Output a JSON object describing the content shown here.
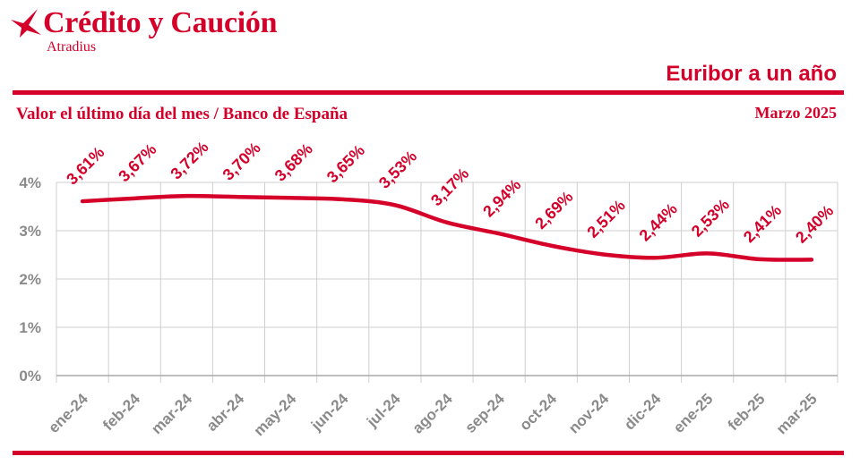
{
  "brand": {
    "logo_icon": "bird-logo-icon",
    "name": "Crédito y Caución",
    "sub": "Atradius"
  },
  "header": {
    "date": "Marzo 2025"
  },
  "colors": {
    "accent": "#d4002a",
    "grid": "#cfcfcf",
    "axis": "#a8a8a8",
    "axis_text": "#8a8a8a"
  },
  "chart_data": {
    "type": "line",
    "title": "Euribor a un año",
    "subtitle": "Valor el último día del mes / Banco de España",
    "categories": [
      "ene-24",
      "feb-24",
      "mar-24",
      "abr-24",
      "may-24",
      "jun-24",
      "jul-24",
      "ago-24",
      "sep-24",
      "oct-24",
      "nov-24",
      "dic-24",
      "ene-25",
      "feb-25",
      "mar-25"
    ],
    "series": [
      {
        "values": [
          3.61,
          3.67,
          3.72,
          3.7,
          3.68,
          3.65,
          3.53,
          3.17,
          2.94,
          2.69,
          2.51,
          2.44,
          2.53,
          2.41,
          2.4
        ],
        "data_labels": [
          "3,61%",
          "3,67%",
          "3,72%",
          "3,70%",
          "3,68%",
          "3,65%",
          "3,53%",
          "3,17%",
          "2,94%",
          "2,69%",
          "2,51%",
          "2,44%",
          "2,53%",
          "2,41%",
          "2,40%"
        ],
        "smooth": true
      }
    ],
    "ylim": [
      0,
      4
    ],
    "yticks": [
      0,
      1,
      2,
      3,
      4
    ],
    "ytick_labels": [
      "0%",
      "1%",
      "2%",
      "3%",
      "4%"
    ],
    "grid": true
  }
}
